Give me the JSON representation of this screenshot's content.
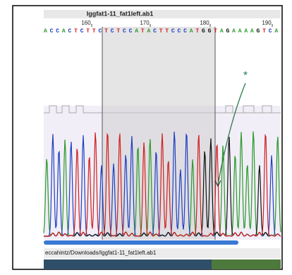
{
  "window": {
    "title": "Iggfat1-11_fat1left.ab1",
    "ruler": [
      "160",
      "170",
      "180",
      "190"
    ],
    "sequence": "ACCACTCTTCTCTCCATACTTCCCATGGTAGAAAAGTCA",
    "annotation": "*",
    "path": "eccahintz/Downloads/Iggfat1-11_fat1left.ab1"
  }
}
